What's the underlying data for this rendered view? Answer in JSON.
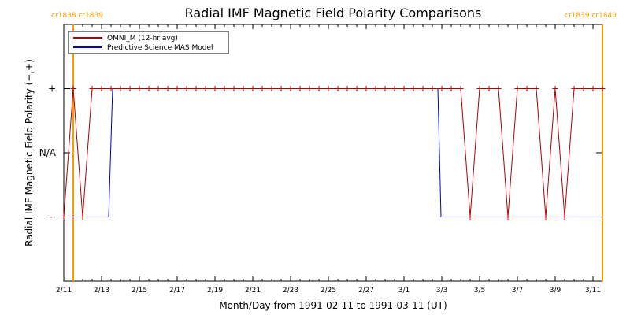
{
  "chart_data": {
    "type": "line",
    "title": "Radial IMF Magnetic Field Polarity Comparisons",
    "xlabel": "Month/Day from 1991-02-11 to 1991-03-11 (UT)",
    "ylabel": "Radial IMF Magnetic Field Polarity (−,+)",
    "x_start": "1991-02-11",
    "x_end": "1991-03-11",
    "x_ticks": [
      "2/11",
      "2/13",
      "2/15",
      "2/17",
      "2/19",
      "2/21",
      "2/23",
      "2/25",
      "2/27",
      "3/1",
      "3/3",
      "3/5",
      "3/7",
      "3/9",
      "3/11"
    ],
    "y_ticks": [
      "−",
      "N/A",
      "+"
    ],
    "y_values": [
      -1,
      0,
      1
    ],
    "ylim": [
      -2,
      2
    ],
    "legend_position": "top-left",
    "carrington_markers": [
      {
        "label": "cr1838 cr1839",
        "x": "1991-02-11T12:00"
      },
      {
        "label": "cr1839 cr1840",
        "x": "1991-03-11T12:00"
      }
    ],
    "series": [
      {
        "name": "OMNI_M (12-hr avg)",
        "color": "#b00000",
        "marker": "plus",
        "points": [
          [
            "1991-02-11T00:00",
            -1
          ],
          [
            "1991-02-11T12:00",
            1
          ],
          [
            "1991-02-12T00:00",
            -1
          ],
          [
            "1991-02-12T12:00",
            1
          ],
          [
            "1991-02-13T00:00",
            1
          ],
          [
            "1991-02-13T12:00",
            1
          ],
          [
            "1991-02-14T00:00",
            1
          ],
          [
            "1991-02-14T12:00",
            1
          ],
          [
            "1991-02-15T00:00",
            1
          ],
          [
            "1991-02-15T12:00",
            1
          ],
          [
            "1991-02-16T00:00",
            1
          ],
          [
            "1991-02-16T12:00",
            1
          ],
          [
            "1991-02-17T00:00",
            1
          ],
          [
            "1991-02-17T12:00",
            1
          ],
          [
            "1991-02-18T00:00",
            1
          ],
          [
            "1991-02-18T12:00",
            1
          ],
          [
            "1991-02-19T00:00",
            1
          ],
          [
            "1991-02-19T12:00",
            1
          ],
          [
            "1991-02-20T00:00",
            1
          ],
          [
            "1991-02-20T12:00",
            1
          ],
          [
            "1991-02-21T00:00",
            1
          ],
          [
            "1991-02-21T12:00",
            1
          ],
          [
            "1991-02-22T00:00",
            1
          ],
          [
            "1991-02-22T12:00",
            1
          ],
          [
            "1991-02-23T00:00",
            1
          ],
          [
            "1991-02-23T12:00",
            1
          ],
          [
            "1991-02-24T00:00",
            1
          ],
          [
            "1991-02-24T12:00",
            1
          ],
          [
            "1991-02-25T00:00",
            1
          ],
          [
            "1991-02-25T12:00",
            1
          ],
          [
            "1991-02-26T00:00",
            1
          ],
          [
            "1991-02-26T12:00",
            1
          ],
          [
            "1991-02-27T00:00",
            1
          ],
          [
            "1991-02-27T12:00",
            1
          ],
          [
            "1991-02-28T00:00",
            1
          ],
          [
            "1991-02-28T12:00",
            1
          ],
          [
            "1991-03-01T00:00",
            1
          ],
          [
            "1991-03-01T12:00",
            1
          ],
          [
            "1991-03-02T00:00",
            1
          ],
          [
            "1991-03-02T12:00",
            1
          ],
          [
            "1991-03-03T00:00",
            1
          ],
          [
            "1991-03-03T12:00",
            1
          ],
          [
            "1991-03-04T00:00",
            1
          ],
          [
            "1991-03-04T12:00",
            -1
          ],
          [
            "1991-03-05T00:00",
            1
          ],
          [
            "1991-03-05T12:00",
            1
          ],
          [
            "1991-03-06T00:00",
            1
          ],
          [
            "1991-03-06T12:00",
            -1
          ],
          [
            "1991-03-07T00:00",
            1
          ],
          [
            "1991-03-07T12:00",
            1
          ],
          [
            "1991-03-08T00:00",
            1
          ],
          [
            "1991-03-08T12:00",
            -1
          ],
          [
            "1991-03-09T00:00",
            1
          ],
          [
            "1991-03-09T12:00",
            -1
          ],
          [
            "1991-03-10T00:00",
            1
          ],
          [
            "1991-03-10T12:00",
            1
          ],
          [
            "1991-03-11T00:00",
            1
          ],
          [
            "1991-03-11T12:00",
            1
          ]
        ]
      },
      {
        "name": "Predictive Science MAS Model",
        "color": "#0000cc",
        "marker": "none",
        "points": [
          [
            "1991-02-11T00:00",
            -1
          ],
          [
            "1991-02-13T09:00",
            -1
          ],
          [
            "1991-02-13T14:00",
            1
          ],
          [
            "1991-03-02T19:00",
            1
          ],
          [
            "1991-03-02T23:00",
            -1
          ],
          [
            "1991-03-11T12:00",
            -1
          ]
        ]
      }
    ]
  }
}
